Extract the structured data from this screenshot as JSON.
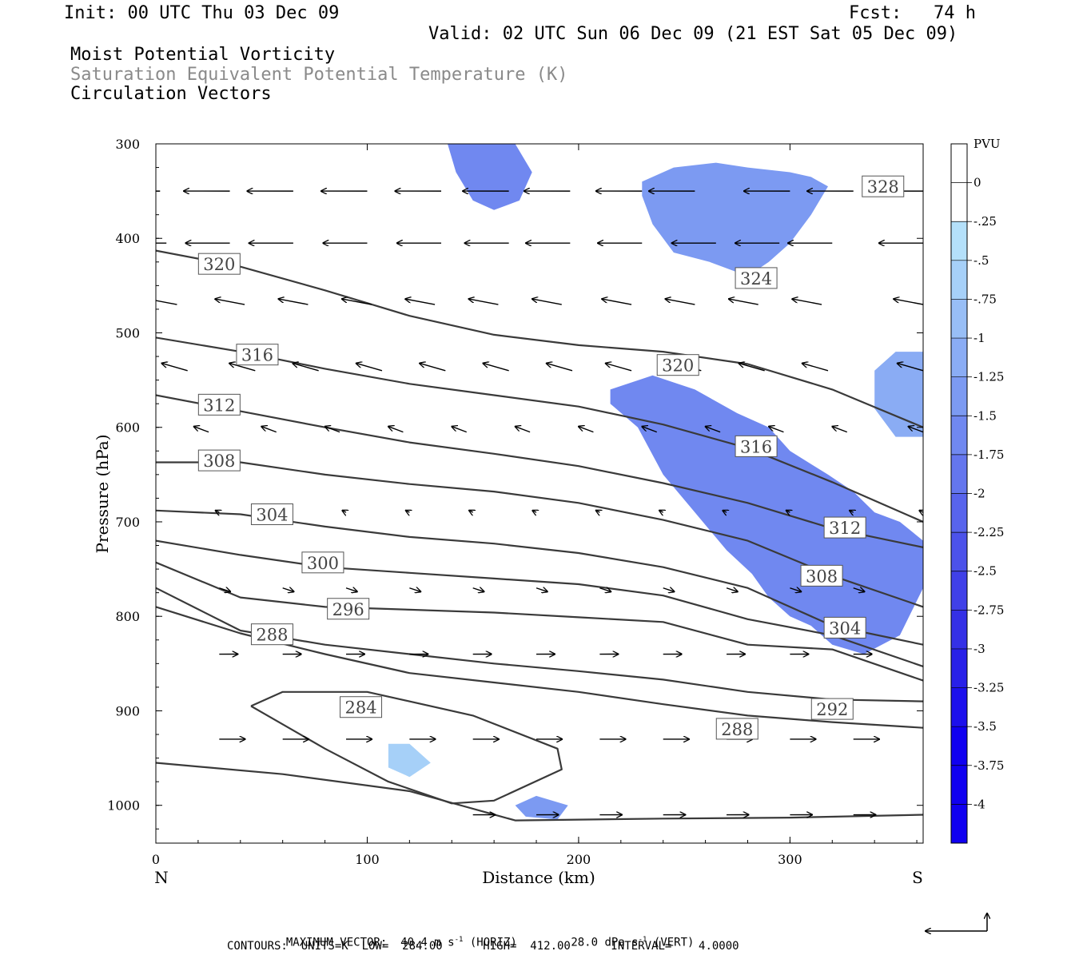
{
  "header": {
    "init": "Init: 00 UTC Thu 03 Dec 09",
    "fcst": "Fcst:   74 h",
    "valid": "Valid: 02 UTC Sun 06 Dec 09 (21 EST Sat 05 Dec 09)",
    "field1": "Moist Potential Vorticity",
    "field2": "Saturation Equivalent Potential Temperature (K)",
    "field3": "Circulation Vectors"
  },
  "colors": {
    "contour": "#3a3a3a",
    "pv_scale": [
      "#ffffff",
      "#ffffff",
      "#b4e0fa",
      "#a6d0f8",
      "#98bef6",
      "#8aacf4",
      "#7c9af2",
      "#7088f0",
      "#6476ee",
      "#5864ec",
      "#4c52ea",
      "#4040e8",
      "#3430e6",
      "#2820e8",
      "#1c10ec",
      "#1000f0"
    ]
  },
  "chart_data": {
    "type": "contour",
    "xlabel": "Distance (km)",
    "ylabel": "Pressure (hPa)",
    "xlim": [
      0,
      363
    ],
    "ylim": [
      1040,
      300
    ],
    "x_ticks": [
      "0",
      "100",
      "200",
      "300"
    ],
    "y_ticks": [
      "300",
      "400",
      "500",
      "600",
      "700",
      "800",
      "900",
      "1000"
    ],
    "end_labels": {
      "left": "N",
      "right": "S"
    },
    "colorbar": {
      "title": "PVU",
      "labels": [
        "0",
        "-.25",
        "-.5",
        "-.75",
        "-1",
        "-1.25",
        "-1.5",
        "-1.75",
        "-2",
        "-2.25",
        "-2.5",
        "-2.75",
        "-3",
        "-3.25",
        "-3.5",
        "-3.75",
        "-4"
      ]
    },
    "contour_labels": [
      {
        "text": "328",
        "x": 344,
        "p": 345
      },
      {
        "text": "324",
        "x": 284,
        "p": 442
      },
      {
        "text": "320",
        "x": 30,
        "p": 427
      },
      {
        "text": "320",
        "x": 247,
        "p": 534
      },
      {
        "text": "316",
        "x": 48,
        "p": 523
      },
      {
        "text": "316",
        "x": 284,
        "p": 620
      },
      {
        "text": "312",
        "x": 30,
        "p": 576
      },
      {
        "text": "312",
        "x": 326,
        "p": 706
      },
      {
        "text": "308",
        "x": 30,
        "p": 635
      },
      {
        "text": "308",
        "x": 315,
        "p": 757
      },
      {
        "text": "304",
        "x": 55,
        "p": 692
      },
      {
        "text": "304",
        "x": 326,
        "p": 812
      },
      {
        "text": "300",
        "x": 79,
        "p": 743
      },
      {
        "text": "296",
        "x": 91,
        "p": 792
      },
      {
        "text": "288",
        "x": 55,
        "p": 819
      },
      {
        "text": "284",
        "x": 97,
        "p": 896
      },
      {
        "text": "292",
        "x": 320,
        "p": 898
      },
      {
        "text": "288",
        "x": 275,
        "p": 919
      }
    ],
    "isentropes": [
      {
        "x": [
          0,
          40,
          80,
          120,
          160,
          200,
          240,
          280,
          320,
          363
        ],
        "p": [
          413,
          430,
          455,
          482,
          502,
          513,
          520,
          533,
          560,
          600
        ]
      },
      {
        "x": [
          0,
          40,
          80,
          120,
          160,
          200,
          240,
          280,
          320,
          363
        ],
        "p": [
          505,
          520,
          538,
          554,
          566,
          578,
          597,
          622,
          658,
          700
        ]
      },
      {
        "x": [
          0,
          40,
          80,
          120,
          160,
          200,
          240,
          280,
          320,
          363
        ],
        "p": [
          566,
          583,
          600,
          616,
          628,
          641,
          659,
          680,
          707,
          727
        ]
      },
      {
        "x": [
          0,
          40,
          80,
          120,
          160,
          200,
          240,
          280,
          320,
          363
        ],
        "p": [
          637,
          637,
          650,
          660,
          668,
          680,
          698,
          720,
          757,
          790
        ]
      },
      {
        "x": [
          0,
          40,
          80,
          120,
          160,
          200,
          240,
          280,
          320,
          363
        ],
        "p": [
          688,
          692,
          705,
          716,
          723,
          733,
          748,
          770,
          810,
          830
        ]
      },
      {
        "x": [
          0,
          40,
          80,
          120,
          160,
          200,
          240,
          280,
          320,
          363
        ],
        "p": [
          720,
          735,
          748,
          754,
          760,
          766,
          778,
          803,
          820,
          853
        ]
      },
      {
        "x": [
          0,
          40,
          80,
          120,
          160,
          200,
          240,
          280,
          320,
          363
        ],
        "p": [
          743,
          780,
          790,
          793,
          796,
          801,
          806,
          830,
          835,
          868
        ]
      },
      {
        "x": [
          0,
          40,
          80,
          120,
          160,
          200,
          240,
          280,
          320,
          363
        ],
        "p": [
          770,
          815,
          830,
          840,
          850,
          858,
          867,
          880,
          888,
          890
        ]
      },
      {
        "x": [
          0,
          40,
          80,
          120,
          160,
          200,
          240,
          280,
          320,
          363
        ],
        "p": [
          790,
          818,
          840,
          860,
          870,
          880,
          893,
          905,
          912,
          918
        ]
      },
      {
        "x": [
          45,
          60,
          100,
          150,
          190,
          192,
          160,
          140,
          110,
          80,
          45
        ],
        "p": [
          895,
          880,
          880,
          905,
          940,
          962,
          995,
          998,
          975,
          940,
          895
        ]
      },
      {
        "x": [
          0,
          60,
          120,
          170,
          240,
          300,
          363
        ],
        "p": [
          955,
          967,
          985,
          1016,
          1014,
          1013,
          1010
        ]
      }
    ],
    "circulation_vectors": [
      {
        "p": 350,
        "x": [
          2,
          35,
          65,
          100,
          135,
          167,
          196,
          230,
          255,
          300,
          330,
          363
        ],
        "u": -25,
        "w": 0
      },
      {
        "p": 405,
        "x": [
          5,
          35,
          65,
          100,
          135,
          167,
          196,
          230,
          265,
          295,
          320,
          363
        ],
        "u": -24,
        "w": 0
      },
      {
        "p": 470,
        "x": [
          10,
          42,
          72,
          102,
          132,
          162,
          192,
          225,
          255,
          285,
          315,
          363
        ],
        "u": -16,
        "w": -3
      },
      {
        "p": 540,
        "x": [
          15,
          47,
          77,
          107,
          137,
          167,
          197,
          225,
          258,
          288,
          318,
          363
        ],
        "u": -14,
        "w": -4
      },
      {
        "p": 605,
        "x": [
          25,
          57,
          87,
          117,
          147,
          177,
          207,
          237,
          267,
          297,
          327,
          363
        ],
        "u": -8,
        "w": -3
      },
      {
        "p": 690,
        "x": [
          30,
          60,
          90,
          120,
          150,
          180,
          210,
          240,
          270,
          300,
          330,
          363
        ],
        "u": -2,
        "w": -1
      },
      {
        "p": 770,
        "x": [
          30,
          60,
          90,
          120,
          150,
          180,
          210,
          240,
          270,
          300,
          330,
          363
        ],
        "u": 6,
        "w": 2
      },
      {
        "p": 840,
        "x": [
          30,
          60,
          90,
          120,
          150,
          180,
          210,
          240,
          270,
          300,
          330,
          363
        ],
        "u": 10,
        "w": 0
      },
      {
        "p": 930,
        "x": [
          30,
          60,
          90,
          120,
          150,
          180,
          210,
          240,
          270,
          300,
          330,
          363
        ],
        "u": 14,
        "w": 0
      },
      {
        "p": 1010,
        "x": [
          150,
          180,
          210,
          240,
          270,
          300,
          330,
          363
        ],
        "u": 12,
        "w": 0
      }
    ],
    "pv_regions": [
      {
        "x": [
          138,
          142,
          150,
          160,
          172,
          178,
          170,
          160,
          150,
          140
        ],
        "p": [
          300,
          330,
          360,
          370,
          360,
          330,
          300,
          300,
          300,
          300
        ],
        "level": -1.5
      },
      {
        "x": [
          230,
          245,
          265,
          280,
          300,
          310,
          318,
          310,
          300,
          290,
          280,
          262,
          245,
          235,
          230
        ],
        "p": [
          340,
          325,
          320,
          325,
          330,
          335,
          345,
          375,
          405,
          425,
          440,
          425,
          415,
          385,
          355
        ],
        "level": -1.25
      },
      {
        "x": [
          215,
          235,
          255,
          275,
          290,
          300,
          318,
          330,
          340,
          352,
          363,
          363,
          352,
          335,
          320,
          310,
          300,
          290,
          282,
          270,
          255,
          240,
          228,
          215
        ],
        "p": [
          560,
          545,
          560,
          585,
          600,
          625,
          650,
          668,
          690,
          700,
          720,
          770,
          820,
          840,
          830,
          810,
          800,
          780,
          755,
          730,
          690,
          650,
          600,
          575
        ],
        "level": -1.5
      },
      {
        "x": [
          340,
          350,
          363,
          363,
          350,
          340
        ],
        "p": [
          540,
          520,
          520,
          610,
          610,
          580
        ],
        "level": -1.0
      },
      {
        "x": [
          110,
          120,
          130,
          120,
          110
        ],
        "p": [
          935,
          935,
          955,
          970,
          960
        ],
        "level": -0.5
      },
      {
        "x": [
          170,
          180,
          195,
          190,
          175
        ],
        "p": [
          1000,
          990,
          1000,
          1015,
          1012
        ],
        "level": -1.25
      }
    ],
    "footer": {
      "max_vector": "MAXIMUM VECTOR:  40.4 m s",
      "horiz": "(HORIZ)",
      "vert_val": "28.0 dPa s",
      "vert": "(VERT)",
      "sup": "-1",
      "contours": "CONTOURS:  UNITS=K  LOW=  284.00      HIGH=  412.00      INTERVAL=    4.0000"
    }
  }
}
